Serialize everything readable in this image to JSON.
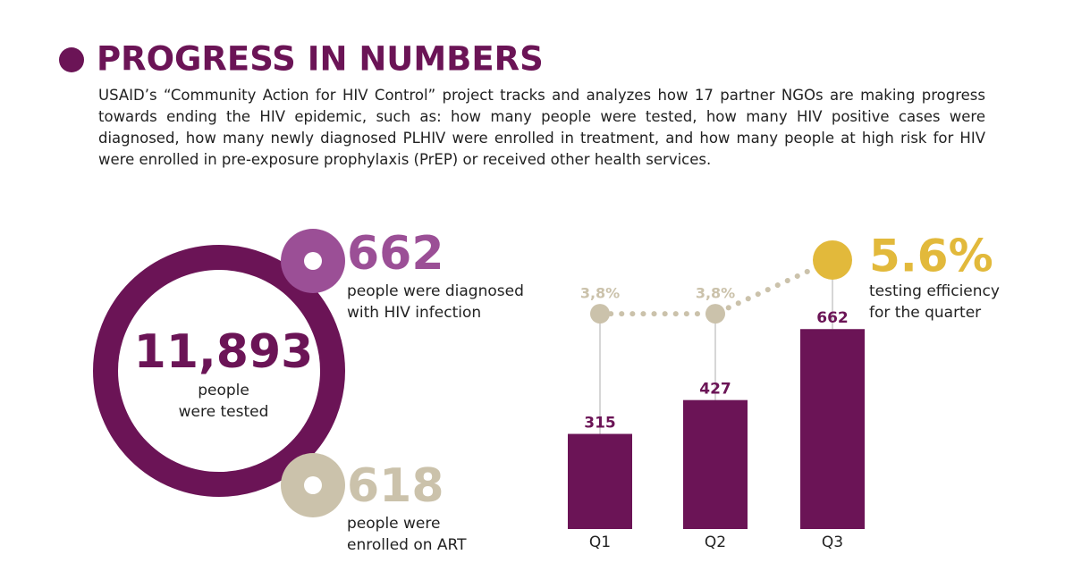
{
  "header": {
    "title": "PROGRESS IN NUMBERS",
    "text": "USAID’s “Community Action for HIV Control” project tracks and analyzes how 17 partner NGOs are making progress towards ending the HIV epidemic, such as: how many people were tested, how many HIV positive cases were diagnosed, how many newly diagnosed PLHIV were enrolled in treatment, and how many people at high risk for HIV were enrolled in pre-exposure prophylaxis (PrEP) or received other health services."
  },
  "stats": {
    "tested": {
      "value": "11,893",
      "label": [
        "people",
        "were tested"
      ]
    },
    "diagnosed": {
      "value": "662",
      "label": [
        "people were diagnosed",
        "with HIV infection"
      ]
    },
    "enrolled": {
      "value": "618",
      "label": [
        "people were",
        "enrolled on ART"
      ]
    }
  },
  "chart_data": {
    "type": "bar",
    "categories": [
      "Q1",
      "Q2",
      "Q3"
    ],
    "values": [
      315,
      427,
      662
    ],
    "color": "#6b1456",
    "line": {
      "type": "line",
      "values": [
        3.8,
        3.8,
        5.6
      ],
      "value_labels": [
        "3,8%",
        "3,8%",
        "5.6%"
      ],
      "colors": [
        "#cbc2ab",
        "#cbc2ab",
        "#e2b93b"
      ],
      "annotation": [
        "testing efficiency",
        "for the quarter"
      ]
    }
  }
}
